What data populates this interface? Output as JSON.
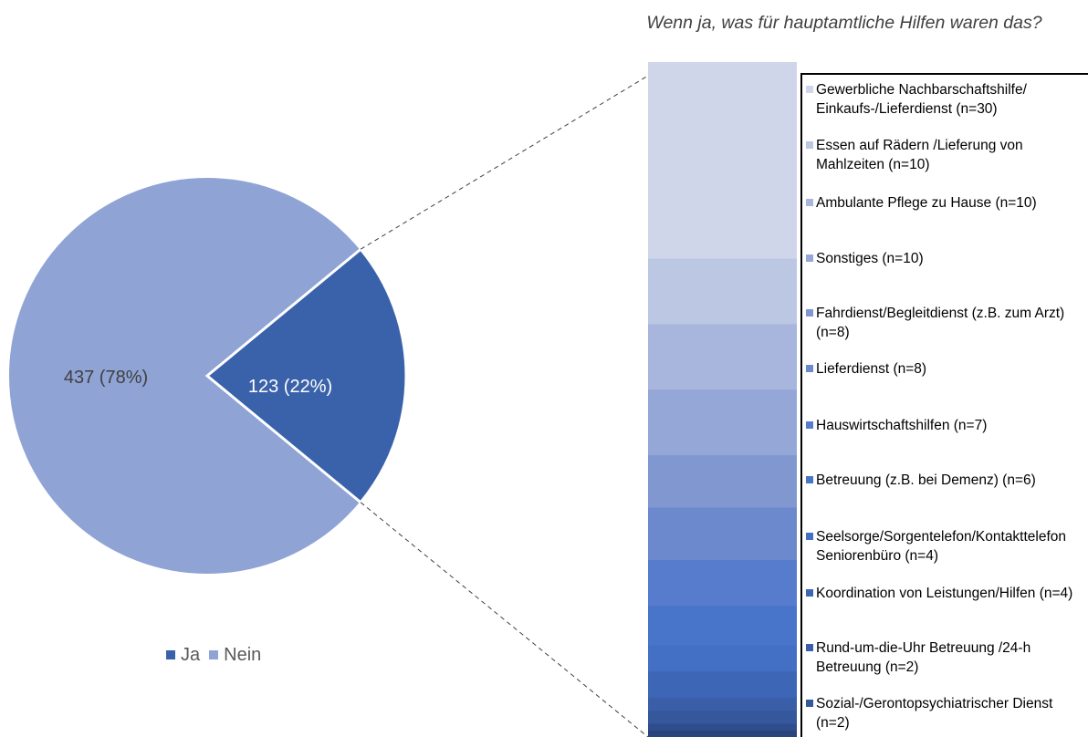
{
  "chart_data": [
    {
      "type": "pie",
      "series": [
        {
          "name": "Ja",
          "value": 123,
          "percent": 22,
          "label": "123 (22%)",
          "color": "#3a62aa",
          "label_color": "#ffffff"
        },
        {
          "name": "Nein",
          "value": 437,
          "percent": 78,
          "label": "437 (78%)",
          "color": "#8fa3d5",
          "label_color": "#404040"
        }
      ],
      "legend": [
        "Ja",
        "Nein"
      ],
      "legend_position": "bottom"
    },
    {
      "type": "bar",
      "stacked": true,
      "title": "Wenn ja, was für hauptamtliche Hilfen waren das?",
      "legend_position": "right",
      "series": [
        {
          "label": "Gewerbliche Nachbarschaftshilfe/ Einkaufs-/Lieferdienst (n=30)",
          "value": 30,
          "color": "#cfd6ea"
        },
        {
          "label": "Essen auf Rädern /Lieferung von Mahlzeiten (n=10)",
          "value": 10,
          "color": "#bcc7e4"
        },
        {
          "label": "Ambulante Pflege zu Hause (n=10)",
          "value": 10,
          "color": "#a8b6dd"
        },
        {
          "label": "Sonstiges (n=10)",
          "value": 10,
          "color": "#95a7d6"
        },
        {
          "label": "Fahrdienst/Begleitdienst (z.B. zum Arzt) (n=8)",
          "value": 8,
          "color": "#8197cf"
        },
        {
          "label": "Lieferdienst (n=8)",
          "value": 8,
          "color": "#6b89cc"
        },
        {
          "label": "Hauswirtschaftshilfen (n=7)",
          "value": 7,
          "color": "#577ccd"
        },
        {
          "label": "Betreuung (z.B. bei Demenz) (n=6)",
          "value": 6,
          "color": "#4874c9"
        },
        {
          "label": "Seelsorge/Sorgentelefon/Kontakttelefon Seniorenbüro (n=4)",
          "value": 4,
          "color": "#4370c5"
        },
        {
          "label": "Koordination von Leistungen/Hilfen (n=4)",
          "value": 4,
          "color": "#3d66b7"
        },
        {
          "label": "Rund-um-die-Uhr Betreuung /24-h Betreuung (n=2)",
          "value": 2,
          "color": "#3a5ea8"
        },
        {
          "label": "Sozial-/Gerontopsychiatrischer Dienst (n=2)",
          "value": 2,
          "color": "#35579b"
        },
        {
          "label": "",
          "value": 1,
          "color": "#2f4d8c"
        },
        {
          "label": "",
          "value": 1,
          "color": "#2a447c"
        }
      ]
    }
  ]
}
